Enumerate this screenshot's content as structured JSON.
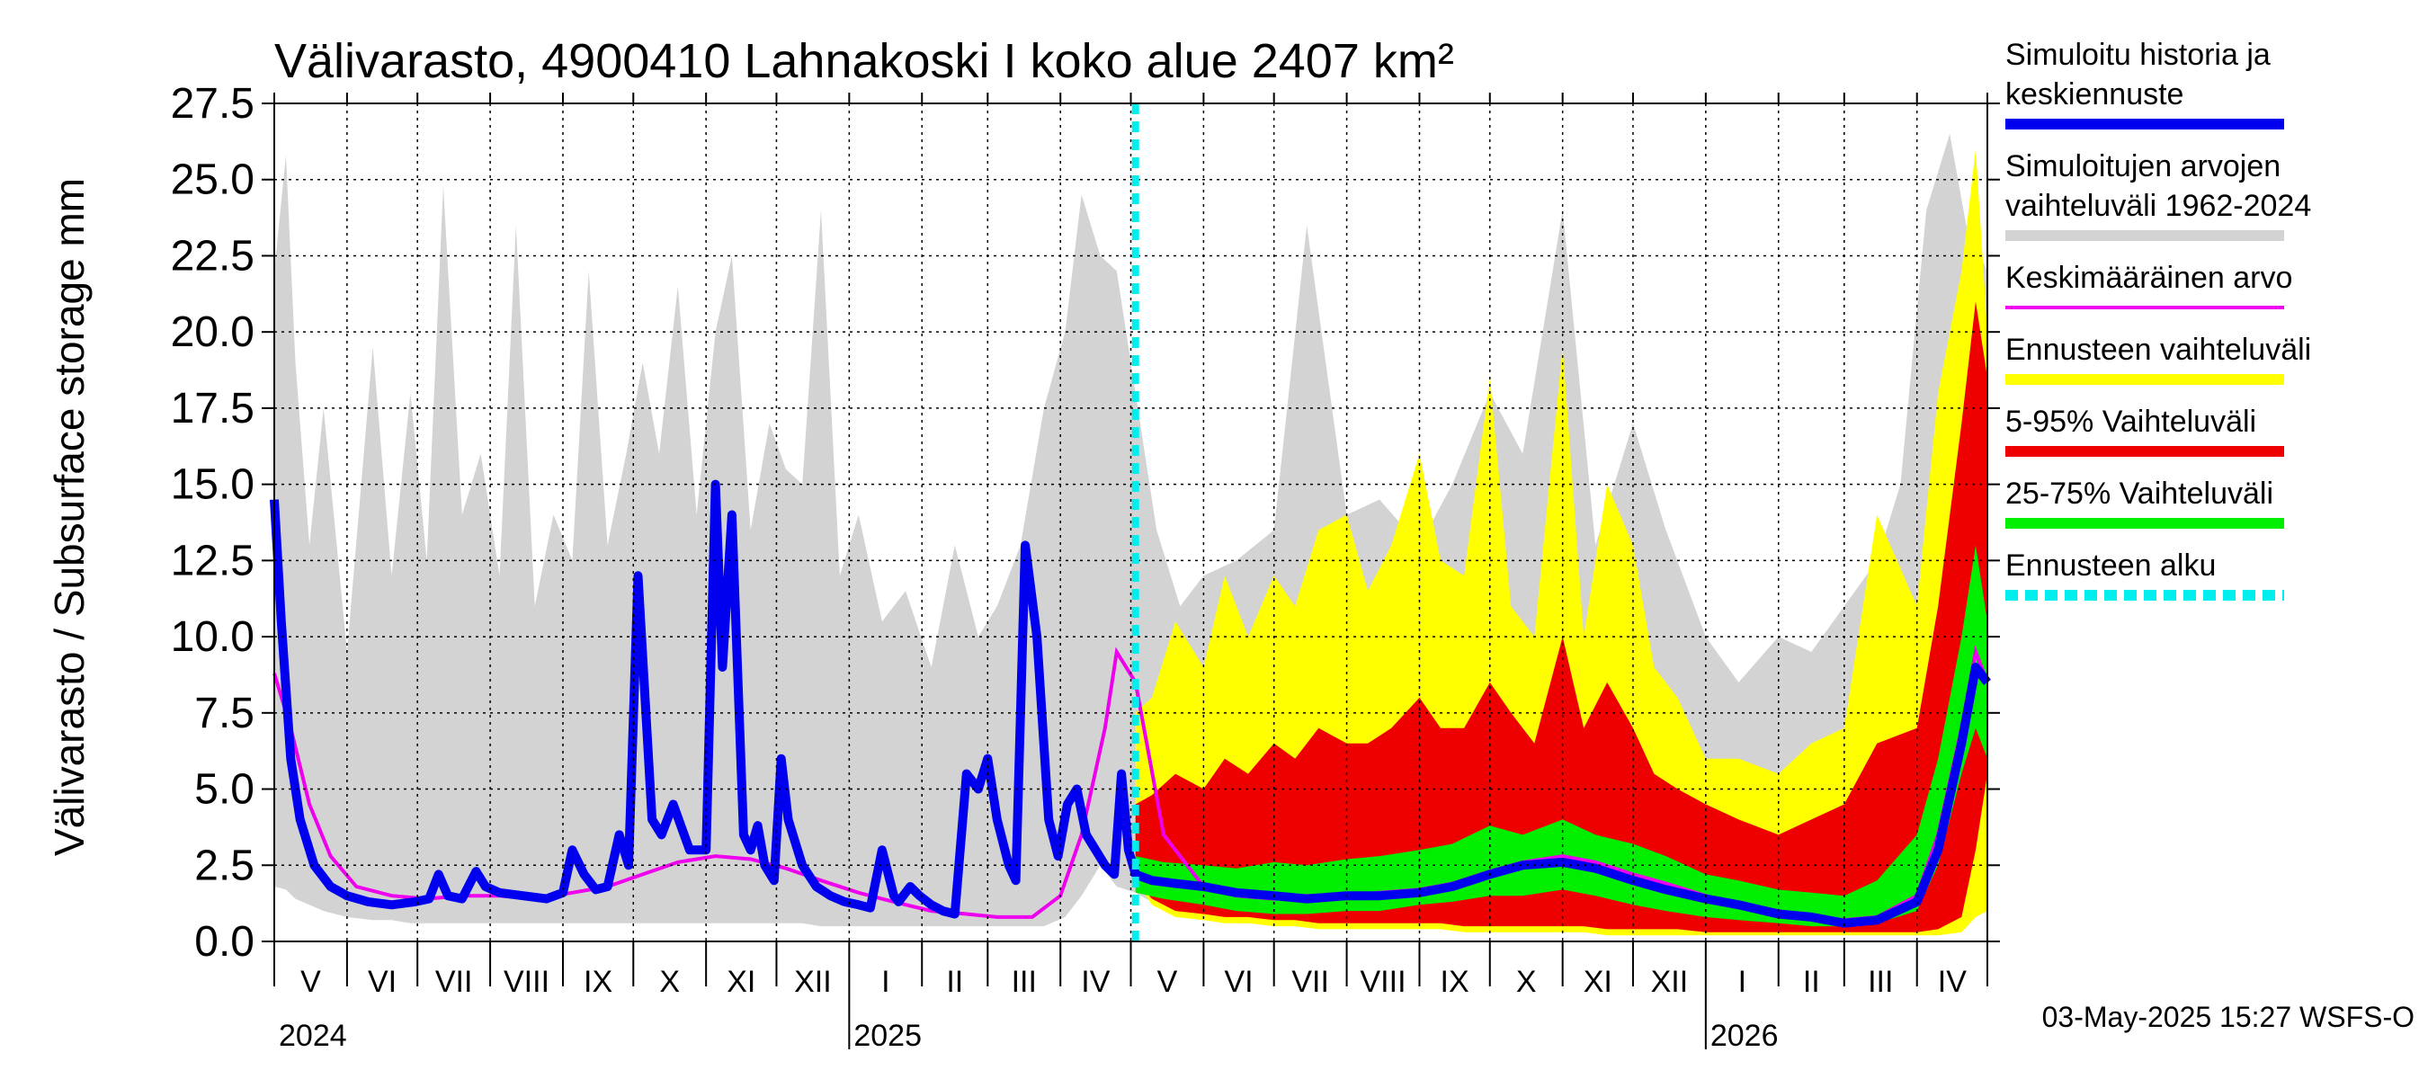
{
  "chart_data": {
    "type": "area",
    "title": "Välivarasto, 4900410 Lahnakoski I koko alue 2407 km²",
    "ylabel": "Välivarasto / Subsurface storage  mm",
    "ylim": [
      0,
      27.5
    ],
    "yticks": [
      "0.0",
      "2.5",
      "5.0",
      "7.5",
      "10.0",
      "12.5",
      "15.0",
      "17.5",
      "20.0",
      "22.5",
      "25.0",
      "27.5"
    ],
    "x_months": [
      "V",
      "VI",
      "VII",
      "VIII",
      "IX",
      "X",
      "XI",
      "XII",
      "I",
      "II",
      "III",
      "IV",
      "V",
      "VI",
      "VII",
      "VIII",
      "IX",
      "X",
      "XI",
      "XII",
      "I",
      "II",
      "III",
      "IV"
    ],
    "x_years": [
      "2024",
      "2025",
      "2026"
    ],
    "xlim": [
      "2024-05-01",
      "2026-05-01"
    ],
    "forecast_start": "2025-05-03",
    "grid": true,
    "legend_position": "right",
    "footer": "03-May-2025 15:27 WSFS-O",
    "colors": {
      "history": "#0000ee",
      "range": "#d3d3d3",
      "mean": "#ee00ee",
      "forecast_range": "#ffff00",
      "p5_95": "#ee0000",
      "p25_75": "#00ee00",
      "forecast_start": "#00eeee"
    },
    "legend": [
      {
        "lines": [
          "Simuloitu historia ja",
          "keskiennuste"
        ],
        "color": "#0000ee",
        "style": "solid"
      },
      {
        "lines": [
          "Simuloitujen arvojen",
          "vaihteluväli 1962-2024"
        ],
        "color": "#d3d3d3",
        "style": "solid"
      },
      {
        "lines": [
          "Keskimääräinen arvo"
        ],
        "color": "#ee00ee",
        "style": "thin"
      },
      {
        "lines": [
          "Ennusteen vaihteluväli"
        ],
        "color": "#ffff00",
        "style": "solid"
      },
      {
        "lines": [
          "5-95% Vaihteluväli"
        ],
        "color": "#ee0000",
        "style": "solid"
      },
      {
        "lines": [
          "25-75% Vaihteluväli"
        ],
        "color": "#00ee00",
        "style": "solid"
      },
      {
        "lines": [
          "Ennusteen alku"
        ],
        "color": "#00eeee",
        "style": "dashed"
      }
    ],
    "series": [
      {
        "name": "Simuloitujen arvojen vaihteluväli 1962-2024",
        "x": [
          "2024-05-01",
          "2024-05-06",
          "2024-05-10",
          "2024-05-16",
          "2024-05-22",
          "2024-06-01",
          "2024-06-12",
          "2024-06-20",
          "2024-06-28",
          "2024-07-05",
          "2024-07-12",
          "2024-07-20",
          "2024-07-28",
          "2024-08-05",
          "2024-08-12",
          "2024-08-20",
          "2024-08-28",
          "2024-09-05",
          "2024-09-12",
          "2024-09-20",
          "2024-09-28",
          "2024-10-05",
          "2024-10-12",
          "2024-10-20",
          "2024-10-28",
          "2024-11-05",
          "2024-11-12",
          "2024-11-20",
          "2024-11-28",
          "2024-12-05",
          "2024-12-12",
          "2024-12-20",
          "2024-12-28",
          "2025-01-05",
          "2025-01-15",
          "2025-01-25",
          "2025-02-05",
          "2025-02-15",
          "2025-02-25",
          "2025-03-05",
          "2025-03-15",
          "2025-03-25",
          "2025-04-03",
          "2025-04-10",
          "2025-04-18",
          "2025-04-25",
          "2025-05-03",
          "2025-05-12",
          "2025-05-22",
          "2025-06-01",
          "2025-06-15",
          "2025-07-01",
          "2025-07-15",
          "2025-08-01",
          "2025-08-15",
          "2025-09-01",
          "2025-09-15",
          "2025-10-01",
          "2025-10-15",
          "2025-11-01",
          "2025-11-15",
          "2025-12-01",
          "2025-12-15",
          "2026-01-01",
          "2026-01-15",
          "2026-02-01",
          "2026-02-15",
          "2026-03-01",
          "2026-03-15",
          "2026-03-25",
          "2026-04-05",
          "2026-04-15",
          "2026-04-22",
          "2026-05-01"
        ],
        "upper": [
          22.0,
          25.8,
          19.0,
          13.0,
          17.5,
          9.5,
          19.5,
          12.0,
          18.0,
          12.5,
          24.8,
          14.0,
          16.0,
          12.0,
          23.5,
          11.0,
          14.0,
          12.5,
          22.0,
          13.0,
          16.0,
          19.0,
          16.0,
          21.5,
          14.0,
          20.0,
          22.5,
          13.5,
          17.0,
          15.5,
          15.0,
          24.0,
          12.0,
          14.0,
          10.5,
          11.5,
          9.0,
          13.0,
          10.0,
          11.0,
          13.0,
          17.5,
          20.0,
          24.5,
          22.5,
          22.0,
          18.0,
          13.5,
          11.0,
          12.0,
          12.5,
          13.5,
          23.5,
          14.0,
          14.5,
          13.0,
          15.0,
          18.0,
          16.0,
          24.0,
          13.0,
          17.0,
          13.5,
          10.0,
          8.5,
          10.0,
          9.5,
          11.0,
          12.5,
          15.0,
          24.0,
          26.5,
          23.5,
          22.0
        ],
        "lower": [
          1.8,
          1.7,
          1.4,
          1.2,
          1.0,
          0.8,
          0.7,
          0.7,
          0.6,
          0.6,
          0.6,
          0.6,
          0.6,
          0.6,
          0.6,
          0.6,
          0.6,
          0.6,
          0.6,
          0.6,
          0.6,
          0.6,
          0.6,
          0.6,
          0.6,
          0.6,
          0.6,
          0.6,
          0.6,
          0.6,
          0.6,
          0.5,
          0.5,
          0.5,
          0.5,
          0.5,
          0.5,
          0.5,
          0.5,
          0.5,
          0.5,
          0.5,
          0.8,
          1.5,
          2.5,
          1.8,
          1.6,
          1.2,
          1.0,
          0.8,
          0.6,
          0.6,
          0.6,
          0.6,
          0.6,
          0.6,
          0.6,
          0.6,
          0.6,
          0.6,
          0.6,
          0.6,
          0.6,
          0.5,
          0.5,
          0.5,
          0.5,
          0.5,
          0.5,
          0.5,
          0.8,
          1.5,
          2.5,
          1.8
        ]
      },
      {
        "name": "Ennusteen vaihteluväli",
        "x": [
          "2025-05-03",
          "2025-05-10",
          "2025-05-20",
          "2025-06-01",
          "2025-06-10",
          "2025-06-20",
          "2025-07-01",
          "2025-07-10",
          "2025-07-20",
          "2025-08-01",
          "2025-08-10",
          "2025-08-20",
          "2025-09-01",
          "2025-09-10",
          "2025-09-20",
          "2025-10-01",
          "2025-10-10",
          "2025-10-20",
          "2025-11-01",
          "2025-11-10",
          "2025-11-20",
          "2025-12-01",
          "2025-12-10",
          "2025-12-20",
          "2026-01-01",
          "2026-01-15",
          "2026-02-01",
          "2026-02-15",
          "2026-03-01",
          "2026-03-15",
          "2026-04-01",
          "2026-04-10",
          "2026-04-20",
          "2026-04-26",
          "2026-05-01"
        ],
        "upper": [
          7.5,
          8.0,
          10.5,
          9.0,
          12.0,
          10.0,
          12.0,
          11.0,
          13.5,
          14.0,
          11.5,
          13.0,
          16.0,
          12.5,
          12.0,
          18.5,
          11.0,
          10.0,
          19.5,
          10.0,
          15.0,
          13.0,
          9.0,
          8.0,
          6.0,
          6.0,
          5.5,
          6.5,
          7.0,
          14.0,
          11.0,
          18.0,
          22.0,
          26.0,
          20.0
        ],
        "lower": [
          2.0,
          1.2,
          0.8,
          0.7,
          0.6,
          0.6,
          0.5,
          0.5,
          0.4,
          0.4,
          0.4,
          0.4,
          0.4,
          0.4,
          0.3,
          0.3,
          0.3,
          0.3,
          0.3,
          0.3,
          0.2,
          0.2,
          0.2,
          0.2,
          0.2,
          0.2,
          0.2,
          0.2,
          0.2,
          0.2,
          0.2,
          0.2,
          0.3,
          0.8,
          1.0
        ]
      },
      {
        "name": "5-95% Vaihteluväli",
        "x": [
          "2025-05-03",
          "2025-05-10",
          "2025-05-20",
          "2025-06-01",
          "2025-06-10",
          "2025-06-20",
          "2025-07-01",
          "2025-07-10",
          "2025-07-20",
          "2025-08-01",
          "2025-08-10",
          "2025-08-20",
          "2025-09-01",
          "2025-09-10",
          "2025-09-20",
          "2025-10-01",
          "2025-10-10",
          "2025-10-20",
          "2025-11-01",
          "2025-11-10",
          "2025-11-20",
          "2025-12-01",
          "2025-12-10",
          "2025-12-20",
          "2026-01-01",
          "2026-01-15",
          "2026-02-01",
          "2026-02-15",
          "2026-03-01",
          "2026-03-15",
          "2026-04-01",
          "2026-04-10",
          "2026-04-20",
          "2026-04-26",
          "2026-05-01"
        ],
        "upper": [
          4.5,
          4.8,
          5.5,
          5.0,
          6.0,
          5.5,
          6.5,
          6.0,
          7.0,
          6.5,
          6.5,
          7.0,
          8.0,
          7.0,
          7.0,
          8.5,
          7.5,
          6.5,
          10.0,
          7.0,
          8.5,
          7.0,
          5.5,
          5.0,
          4.5,
          4.0,
          3.5,
          4.0,
          4.5,
          6.5,
          7.0,
          11.0,
          17.0,
          21.0,
          18.5
        ],
        "lower": [
          2.0,
          1.4,
          1.0,
          0.9,
          0.8,
          0.8,
          0.7,
          0.7,
          0.6,
          0.6,
          0.6,
          0.6,
          0.6,
          0.6,
          0.5,
          0.5,
          0.5,
          0.5,
          0.5,
          0.5,
          0.4,
          0.4,
          0.4,
          0.4,
          0.3,
          0.3,
          0.3,
          0.3,
          0.3,
          0.3,
          0.3,
          0.4,
          0.8,
          3.0,
          5.5
        ]
      },
      {
        "name": "25-75% Vaihteluväli",
        "x": [
          "2025-05-03",
          "2025-05-15",
          "2025-06-01",
          "2025-06-15",
          "2025-07-01",
          "2025-07-15",
          "2025-08-01",
          "2025-08-15",
          "2025-09-01",
          "2025-09-15",
          "2025-10-01",
          "2025-10-15",
          "2025-11-01",
          "2025-11-15",
          "2025-12-01",
          "2025-12-15",
          "2026-01-01",
          "2026-01-15",
          "2026-02-01",
          "2026-02-15",
          "2026-03-01",
          "2026-03-15",
          "2026-04-01",
          "2026-04-10",
          "2026-04-20",
          "2026-04-26",
          "2026-05-01"
        ],
        "upper": [
          2.8,
          2.6,
          2.5,
          2.4,
          2.6,
          2.5,
          2.7,
          2.8,
          3.0,
          3.2,
          3.8,
          3.5,
          4.0,
          3.5,
          3.2,
          2.8,
          2.2,
          2.0,
          1.7,
          1.6,
          1.5,
          2.0,
          3.5,
          6.0,
          10.0,
          13.0,
          10.5
        ],
        "lower": [
          1.6,
          1.4,
          1.2,
          1.0,
          0.9,
          0.9,
          1.0,
          1.0,
          1.2,
          1.3,
          1.5,
          1.5,
          1.7,
          1.5,
          1.2,
          1.0,
          0.8,
          0.7,
          0.6,
          0.5,
          0.5,
          0.6,
          1.0,
          2.5,
          5.5,
          7.0,
          6.0
        ]
      },
      {
        "name": "Keskimääräinen arvo",
        "x": [
          "2024-05-01",
          "2024-05-08",
          "2024-05-16",
          "2024-05-25",
          "2024-06-05",
          "2024-06-20",
          "2024-07-05",
          "2024-07-20",
          "2024-08-05",
          "2024-08-20",
          "2024-09-05",
          "2024-09-20",
          "2024-10-05",
          "2024-10-20",
          "2024-11-05",
          "2024-11-20",
          "2024-12-05",
          "2024-12-20",
          "2025-01-05",
          "2025-01-20",
          "2025-02-05",
          "2025-02-20",
          "2025-03-05",
          "2025-03-20",
          "2025-04-01",
          "2025-04-10",
          "2025-04-20",
          "2025-04-25",
          "2025-05-03",
          "2025-05-15",
          "2025-06-01",
          "2025-06-15",
          "2025-07-01",
          "2025-07-15",
          "2025-08-01",
          "2025-08-15",
          "2025-09-01",
          "2025-09-15",
          "2025-10-01",
          "2025-10-15",
          "2025-11-01",
          "2025-11-15",
          "2025-12-01",
          "2025-12-15",
          "2026-01-01",
          "2026-01-15",
          "2026-02-01",
          "2026-02-15",
          "2026-03-01",
          "2026-03-15",
          "2026-04-01",
          "2026-04-10",
          "2026-04-20",
          "2026-04-26",
          "2026-05-01"
        ],
        "y": [
          8.8,
          7.0,
          4.5,
          2.8,
          1.8,
          1.5,
          1.4,
          1.5,
          1.5,
          1.4,
          1.6,
          1.8,
          2.2,
          2.6,
          2.8,
          2.7,
          2.4,
          2.0,
          1.6,
          1.3,
          1.0,
          0.9,
          0.8,
          0.8,
          1.5,
          3.5,
          7.0,
          9.5,
          8.5,
          3.5,
          1.8,
          1.5,
          1.4,
          1.5,
          1.5,
          1.6,
          1.7,
          1.9,
          2.3,
          2.6,
          2.8,
          2.6,
          2.2,
          1.9,
          1.5,
          1.2,
          1.0,
          0.8,
          0.7,
          0.8,
          1.5,
          3.5,
          7.0,
          9.5,
          8.5
        ]
      },
      {
        "name": "Simuloitu historia ja keskiennuste",
        "x": [
          "2024-05-01",
          "2024-05-04",
          "2024-05-08",
          "2024-05-12",
          "2024-05-18",
          "2024-05-25",
          "2024-06-01",
          "2024-06-10",
          "2024-06-20",
          "2024-06-30",
          "2024-07-06",
          "2024-07-10",
          "2024-07-14",
          "2024-07-20",
          "2024-07-26",
          "2024-07-30",
          "2024-08-05",
          "2024-08-15",
          "2024-08-25",
          "2024-09-01",
          "2024-09-05",
          "2024-09-10",
          "2024-09-15",
          "2024-09-20",
          "2024-09-25",
          "2024-09-29",
          "2024-10-03",
          "2024-10-06",
          "2024-10-09",
          "2024-10-13",
          "2024-10-18",
          "2024-10-25",
          "2024-11-01",
          "2024-11-05",
          "2024-11-08",
          "2024-11-12",
          "2024-11-17",
          "2024-11-20",
          "2024-11-23",
          "2024-11-26",
          "2024-11-30",
          "2024-12-03",
          "2024-12-06",
          "2024-12-12",
          "2024-12-18",
          "2024-12-24",
          "2024-12-30",
          "2025-01-05",
          "2025-01-10",
          "2025-01-15",
          "2025-01-20",
          "2025-01-22",
          "2025-01-27",
          "2025-01-31",
          "2025-02-05",
          "2025-02-10",
          "2025-02-15",
          "2025-02-20",
          "2025-02-25",
          "2025-03-01",
          "2025-03-05",
          "2025-03-10",
          "2025-03-13",
          "2025-03-17",
          "2025-03-22",
          "2025-03-27",
          "2025-03-31",
          "2025-04-04",
          "2025-04-08",
          "2025-04-12",
          "2025-04-16",
          "2025-04-20",
          "2025-04-24",
          "2025-04-27",
          "2025-04-30",
          "2025-05-03",
          "2025-05-10",
          "2025-05-20",
          "2025-06-01",
          "2025-06-15",
          "2025-07-01",
          "2025-07-15",
          "2025-08-01",
          "2025-08-15",
          "2025-09-01",
          "2025-09-15",
          "2025-10-01",
          "2025-10-15",
          "2025-11-01",
          "2025-11-15",
          "2025-12-01",
          "2025-12-15",
          "2026-01-01",
          "2026-01-15",
          "2026-02-01",
          "2026-02-15",
          "2026-03-01",
          "2026-03-15",
          "2026-04-01",
          "2026-04-10",
          "2026-04-20",
          "2026-04-26",
          "2026-05-01"
        ],
        "y": [
          14.5,
          10.5,
          6.0,
          4.0,
          2.5,
          1.8,
          1.5,
          1.3,
          1.2,
          1.3,
          1.4,
          2.2,
          1.5,
          1.4,
          2.3,
          1.8,
          1.6,
          1.5,
          1.4,
          1.6,
          3.0,
          2.2,
          1.7,
          1.8,
          3.5,
          2.5,
          12.0,
          8.0,
          4.0,
          3.5,
          4.5,
          3.0,
          3.0,
          15.0,
          9.0,
          14.0,
          3.5,
          3.0,
          3.8,
          2.5,
          2.0,
          6.0,
          4.0,
          2.5,
          1.8,
          1.5,
          1.3,
          1.2,
          1.1,
          3.0,
          1.5,
          1.3,
          1.8,
          1.5,
          1.2,
          1.0,
          0.9,
          5.5,
          5.0,
          6.0,
          4.0,
          2.5,
          2.0,
          13.0,
          10.0,
          4.0,
          2.8,
          4.5,
          5.0,
          3.5,
          3.0,
          2.5,
          2.2,
          5.5,
          3.0,
          2.2,
          2.0,
          1.9,
          1.8,
          1.6,
          1.5,
          1.4,
          1.5,
          1.5,
          1.6,
          1.8,
          2.2,
          2.5,
          2.6,
          2.4,
          2.0,
          1.7,
          1.4,
          1.2,
          0.9,
          0.8,
          0.6,
          0.7,
          1.3,
          3.0,
          6.5,
          9.0,
          8.5
        ]
      }
    ]
  }
}
